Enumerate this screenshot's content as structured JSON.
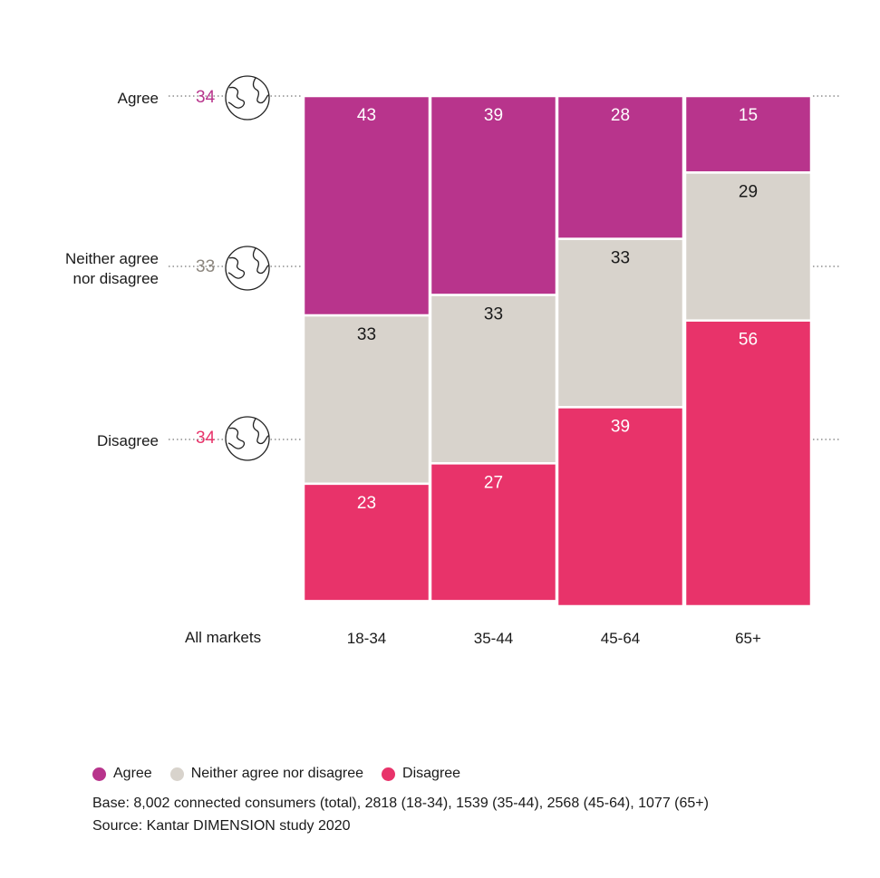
{
  "colors": {
    "agree": "#b8348c",
    "neither": "#d8d3cc",
    "disagree": "#e8336a",
    "neither_text": "#8d877f",
    "grid": "#555555",
    "outline": "#222222"
  },
  "chart_data": {
    "type": "bar",
    "stacked": true,
    "categories": [
      "18-34",
      "35-44",
      "45-64",
      "65+"
    ],
    "series": [
      {
        "name": "Agree",
        "values": [
          43,
          39,
          28,
          15
        ]
      },
      {
        "name": "Neither agree nor disagree",
        "values": [
          33,
          33,
          33,
          29
        ]
      },
      {
        "name": "Disagree",
        "values": [
          23,
          27,
          39,
          56
        ]
      }
    ],
    "ylim": [
      0,
      100
    ],
    "reference_label": "All markets",
    "reference": [
      {
        "label": "Agree",
        "value": 34,
        "icon": "globe-icon"
      },
      {
        "label_lines": [
          "Neither agree",
          "nor disagree"
        ],
        "value": 33,
        "icon": "globe-icon"
      },
      {
        "label": "Disagree",
        "value": 34,
        "icon": "globe-icon"
      }
    ],
    "legend": {
      "placement": "bottom-left",
      "items": [
        "Agree",
        "Neither agree nor disagree",
        "Disagree"
      ]
    }
  },
  "notes": {
    "base": "Base: 8,002 connected consumers (total), 2818 (18-34), 1539 (35-44), 2568 (45-64), 1077 (65+)",
    "source": "Source: Kantar DIMENSION study 2020"
  }
}
